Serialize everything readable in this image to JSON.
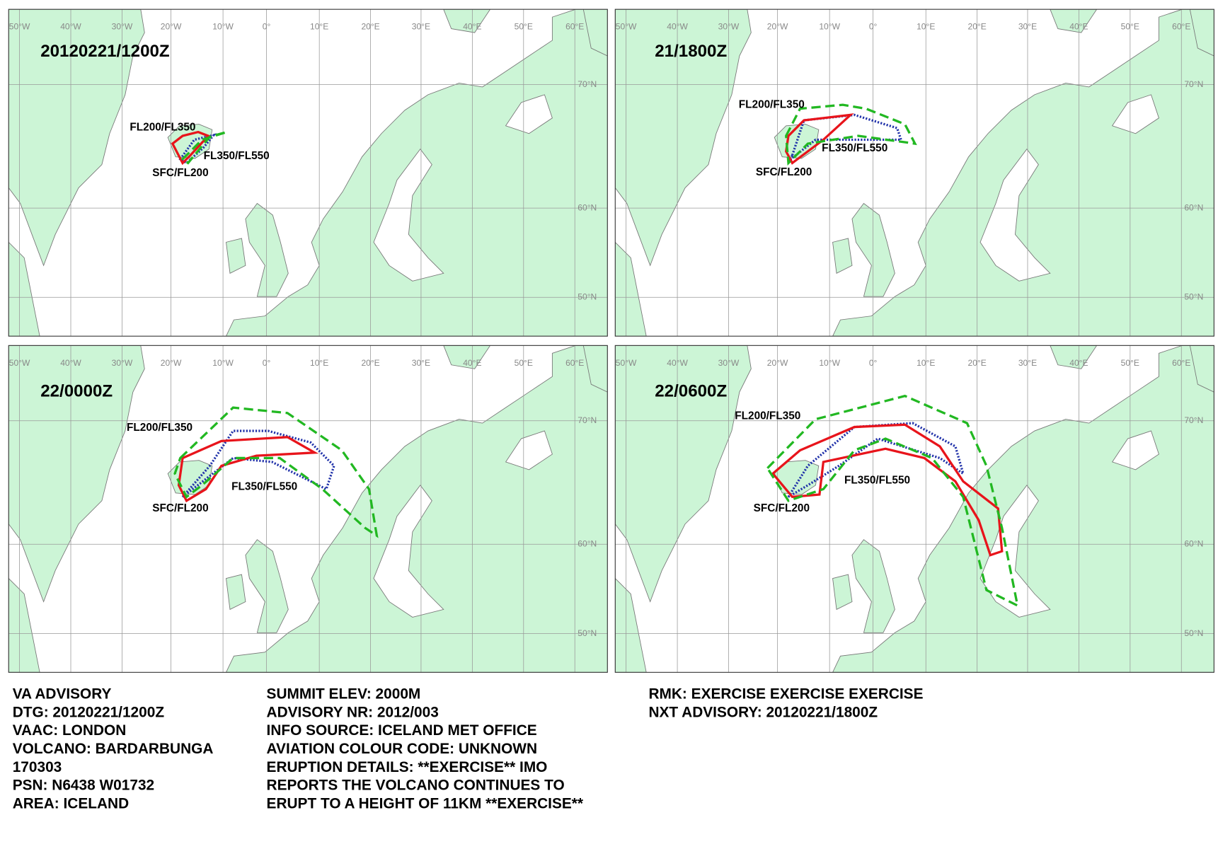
{
  "panels": [
    {
      "time": "20120221/1200Z",
      "layers": [
        "FL200/FL350",
        "FL350/FL550",
        "SFC/FL200"
      ]
    },
    {
      "time": "21/1800Z",
      "layers": [
        "FL200/FL350",
        "FL350/FL550",
        "SFC/FL200"
      ]
    },
    {
      "time": "22/0000Z",
      "layers": [
        "FL200/FL350",
        "FL350/FL550",
        "SFC/FL200"
      ]
    },
    {
      "time": "22/0600Z",
      "layers": [
        "FL200/FL350",
        "FL350/FL550",
        "SFC/FL200"
      ]
    }
  ],
  "lon_labels": [
    "50°W",
    "40°W",
    "30°W",
    "20°W",
    "10°W",
    "0°",
    "10°E",
    "20°E",
    "30°E",
    "40°E",
    "50°E",
    "60°E"
  ],
  "lat_labels": [
    "70°N",
    "60°N",
    "50°N"
  ],
  "advisory": {
    "col1": [
      "VA ADVISORY",
      "DTG:  20120221/1200Z",
      "VAAC:  LONDON",
      "VOLCANO:  BARDARBUNGA",
      "170303",
      "PSN:  N6438 W01732",
      "AREA:  ICELAND"
    ],
    "col2": [
      "SUMMIT ELEV:  2000M",
      "ADVISORY NR:  2012/003",
      "INFO SOURCE:  ICELAND MET OFFICE",
      "AVIATION COLOUR CODE:  UNKNOWN",
      "ERUPTION DETAILS:  **EXERCISE** IMO",
      "REPORTS THE VOLCANO CONTINUES TO",
      "ERUPT TO A HEIGHT OF 11KM **EXERCISE**"
    ],
    "col3": [
      "RMK:  EXERCISE EXERCISE EXERCISE",
      "NXT ADVISORY:  20120221/1800Z"
    ]
  }
}
